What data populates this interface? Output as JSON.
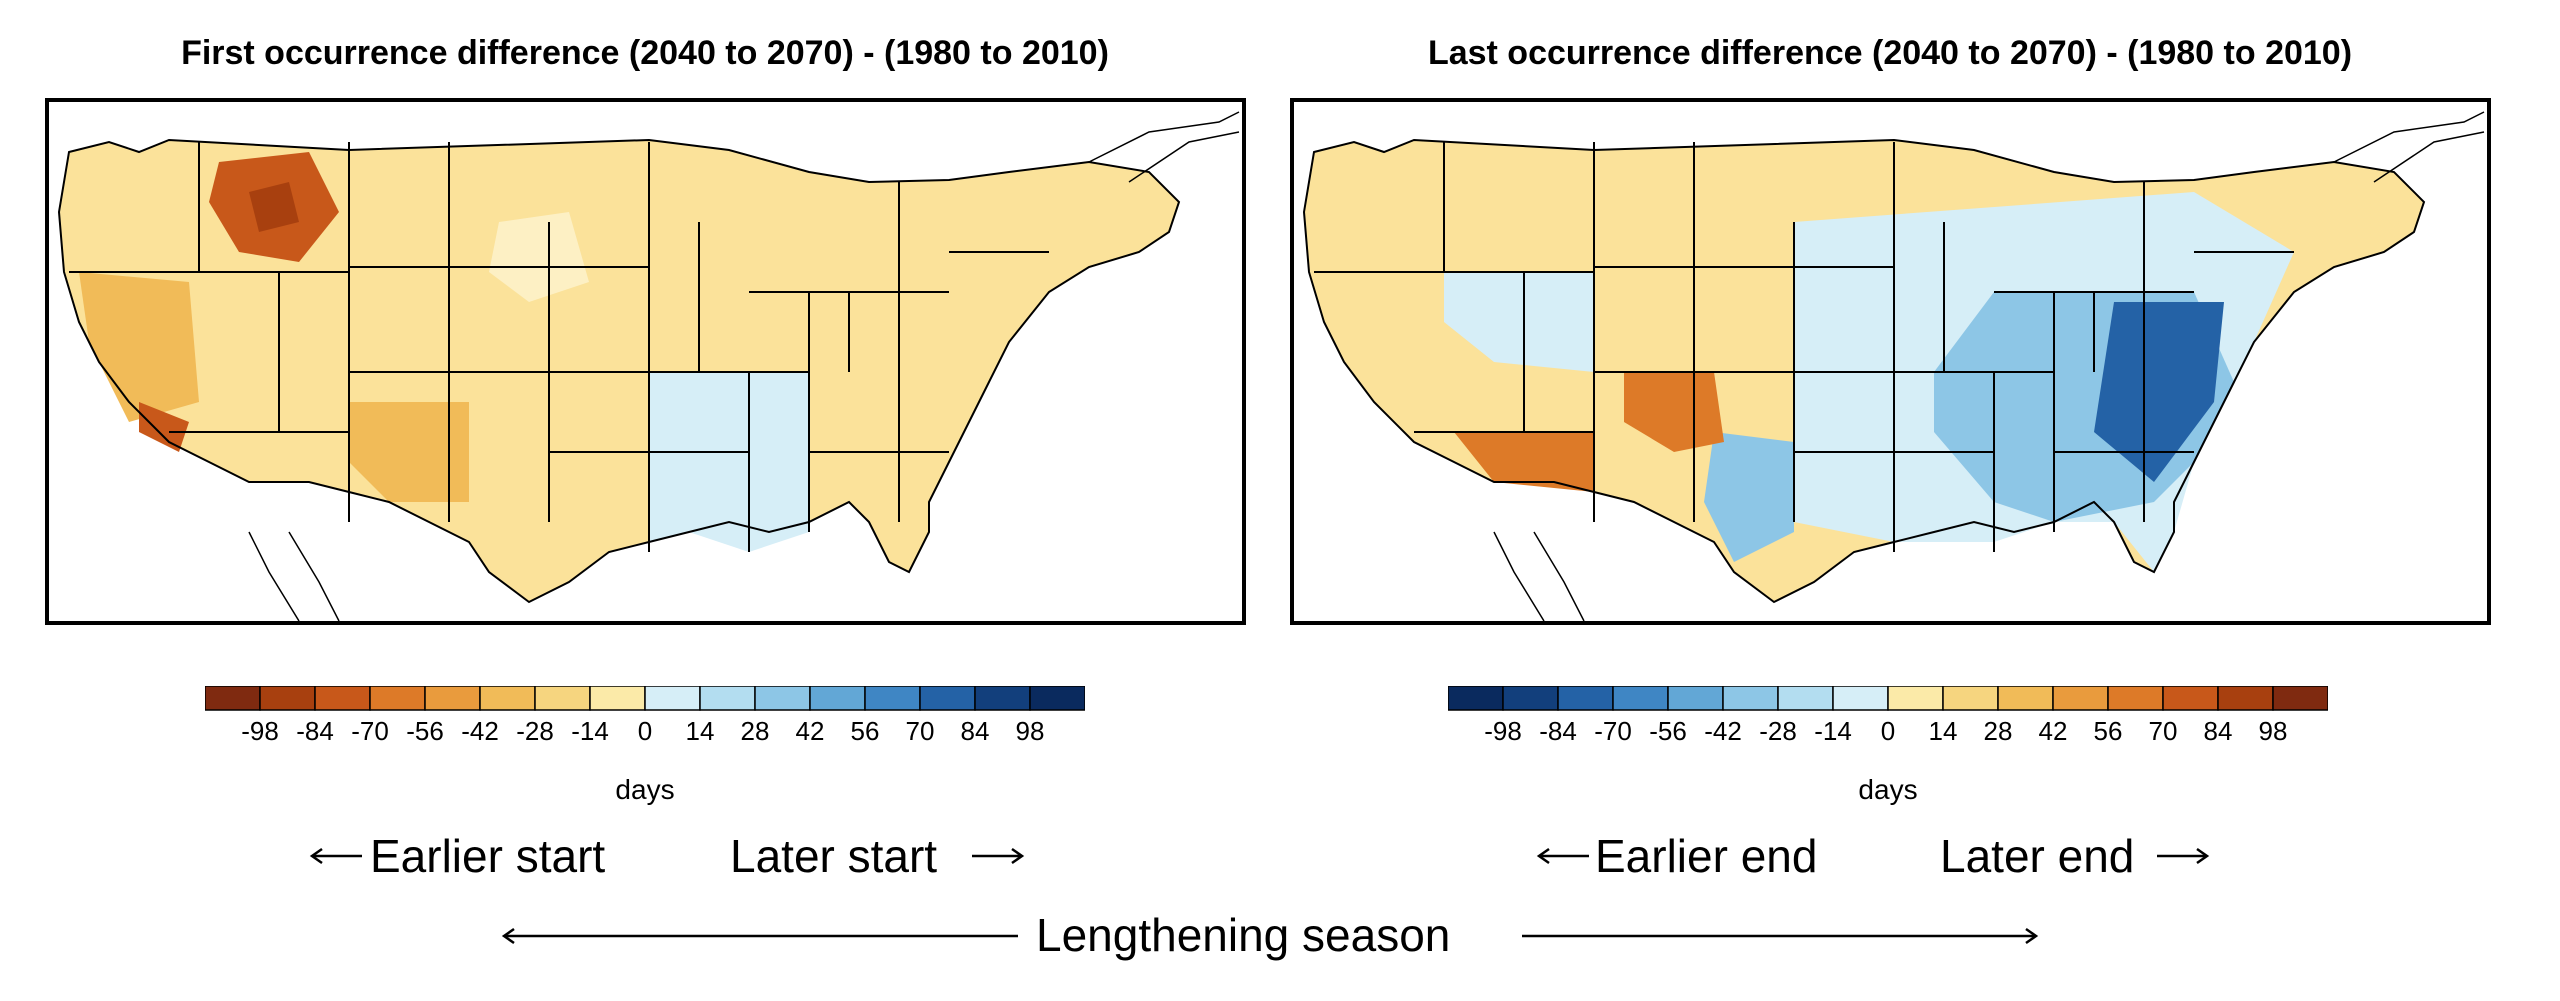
{
  "panels": [
    {
      "title": "First occurrence difference (2040 to 2070) - (1980 to 2010)",
      "colorbar": {
        "ticks": [
          "-98",
          "-84",
          "-70",
          "-56",
          "-42",
          "-28",
          "-14",
          "0",
          "14",
          "28",
          "42",
          "56",
          "70",
          "84",
          "98"
        ],
        "unit": "days",
        "colors": [
          "#7f2a10",
          "#a8400f",
          "#c8581a",
          "#dd7a28",
          "#e99b3d",
          "#f1bb58",
          "#f6d57f",
          "#fbeaa8",
          "#d6eef7",
          "#b3ddf0",
          "#8dc6e6",
          "#62a7d6",
          "#3f86c4",
          "#2462a6",
          "#123f7c",
          "#0a2a5e"
        ]
      },
      "map_palette": {
        "strong": "#c8581a",
        "mid": "#f1bb58",
        "light": "#fbe29a",
        "pale": "#fdf0c4",
        "blue": "#d6eef7"
      },
      "arrow_left": "Earlier start",
      "arrow_right": "Later start"
    },
    {
      "title": "Last occurrence difference (2040 to 2070) - (1980 to 2010)",
      "colorbar": {
        "ticks": [
          "-98",
          "-84",
          "-70",
          "-56",
          "-42",
          "-28",
          "-14",
          "0",
          "14",
          "28",
          "42",
          "56",
          "70",
          "84",
          "98"
        ],
        "unit": "days",
        "colors": [
          "#0a2a5e",
          "#123f7c",
          "#2462a6",
          "#3f86c4",
          "#62a7d6",
          "#8dc6e6",
          "#b3ddf0",
          "#d6eef7",
          "#fbeaa8",
          "#f6d57f",
          "#f1bb58",
          "#e99b3d",
          "#dd7a28",
          "#c8581a",
          "#a8400f",
          "#7f2a10"
        ]
      },
      "map_palette": {
        "strong": "#2462a6",
        "mid": "#8dc6e6",
        "light": "#fbe29a",
        "pale": "#d6eef7",
        "orange": "#dd7a28"
      },
      "arrow_left": "Earlier end",
      "arrow_right": "Later end"
    }
  ],
  "bottom_caption": "Lengthening season"
}
